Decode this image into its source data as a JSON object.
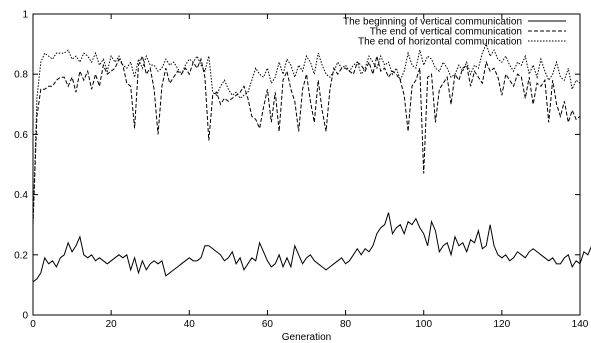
{
  "chart_data": {
    "type": "line",
    "title": "",
    "xlabel": "Generation",
    "ylabel": "",
    "xlim": [
      0,
      140
    ],
    "ylim": [
      0,
      1
    ],
    "xticks": [
      0,
      20,
      40,
      60,
      80,
      100,
      120,
      140
    ],
    "yticks": [
      0,
      0.2,
      0.4,
      0.6,
      0.8,
      1
    ],
    "ytick_labels": [
      "0",
      "0.2",
      "0.4",
      "0.6",
      "0.8",
      "1"
    ],
    "grid": false,
    "legend_position": "top-right",
    "series": [
      {
        "name": "The beginning of vertical communication",
        "dash": "solid",
        "values": [
          0.11,
          0.12,
          0.14,
          0.19,
          0.17,
          0.18,
          0.16,
          0.19,
          0.2,
          0.24,
          0.21,
          0.23,
          0.26,
          0.2,
          0.19,
          0.2,
          0.18,
          0.19,
          0.18,
          0.17,
          0.18,
          0.19,
          0.2,
          0.19,
          0.2,
          0.15,
          0.19,
          0.14,
          0.18,
          0.15,
          0.17,
          0.18,
          0.17,
          0.18,
          0.13,
          0.14,
          0.15,
          0.16,
          0.17,
          0.18,
          0.19,
          0.18,
          0.18,
          0.19,
          0.23,
          0.23,
          0.22,
          0.21,
          0.2,
          0.18,
          0.19,
          0.21,
          0.17,
          0.19,
          0.15,
          0.17,
          0.19,
          0.18,
          0.24,
          0.21,
          0.18,
          0.16,
          0.17,
          0.2,
          0.16,
          0.19,
          0.16,
          0.23,
          0.2,
          0.17,
          0.19,
          0.2,
          0.18,
          0.17,
          0.16,
          0.15,
          0.16,
          0.17,
          0.18,
          0.19,
          0.17,
          0.18,
          0.2,
          0.22,
          0.2,
          0.22,
          0.21,
          0.23,
          0.27,
          0.29,
          0.3,
          0.34,
          0.27,
          0.29,
          0.3,
          0.27,
          0.31,
          0.3,
          0.32,
          0.29,
          0.27,
          0.23,
          0.31,
          0.28,
          0.21,
          0.23,
          0.24,
          0.2,
          0.26,
          0.23,
          0.24,
          0.21,
          0.25,
          0.24,
          0.28,
          0.22,
          0.23,
          0.3,
          0.23,
          0.2,
          0.19,
          0.2,
          0.18,
          0.19,
          0.21,
          0.2,
          0.19,
          0.21,
          0.22,
          0.21,
          0.2,
          0.19,
          0.18,
          0.19,
          0.17,
          0.17,
          0.19,
          0.2,
          0.16,
          0.18,
          0.17,
          0.21,
          0.2,
          0.23,
          0.21,
          0.22
        ]
      },
      {
        "name": "The end of vertical communication",
        "dash": "dashed",
        "values": [
          0.3,
          0.66,
          0.75,
          0.75,
          0.76,
          0.76,
          0.78,
          0.79,
          0.79,
          0.76,
          0.79,
          0.74,
          0.81,
          0.78,
          0.81,
          0.75,
          0.8,
          0.76,
          0.83,
          0.8,
          0.81,
          0.82,
          0.85,
          0.83,
          0.77,
          0.76,
          0.62,
          0.83,
          0.86,
          0.8,
          0.82,
          0.75,
          0.6,
          0.76,
          0.82,
          0.77,
          0.79,
          0.81,
          0.8,
          0.82,
          0.8,
          0.84,
          0.82,
          0.85,
          0.79,
          0.58,
          0.73,
          0.74,
          0.7,
          0.72,
          0.71,
          0.72,
          0.73,
          0.74,
          0.76,
          0.72,
          0.66,
          0.65,
          0.62,
          0.69,
          0.75,
          0.64,
          0.74,
          0.61,
          0.78,
          0.81,
          0.75,
          0.71,
          0.61,
          0.75,
          0.8,
          0.71,
          0.64,
          0.78,
          0.68,
          0.61,
          0.75,
          0.82,
          0.8,
          0.82,
          0.82,
          0.81,
          0.8,
          0.84,
          0.83,
          0.81,
          0.84,
          0.8,
          0.86,
          0.81,
          0.82,
          0.79,
          0.81,
          0.8,
          0.78,
          0.73,
          0.61,
          0.76,
          0.78,
          0.82,
          0.47,
          0.79,
          0.8,
          0.64,
          0.75,
          0.77,
          0.79,
          0.7,
          0.8,
          0.78,
          0.82,
          0.83,
          0.76,
          0.81,
          0.79,
          0.77,
          0.84,
          0.81,
          0.82,
          0.79,
          0.73,
          0.8,
          0.78,
          0.76,
          0.8,
          0.79,
          0.72,
          0.79,
          0.7,
          0.77,
          0.76,
          0.78,
          0.64,
          0.78,
          0.7,
          0.66,
          0.71,
          0.64,
          0.68,
          0.65,
          0.66
        ]
      },
      {
        "name": "The end of horizontal communication",
        "dash": "dotted",
        "values": [
          0.3,
          0.72,
          0.84,
          0.87,
          0.86,
          0.85,
          0.87,
          0.87,
          0.87,
          0.88,
          0.85,
          0.86,
          0.84,
          0.87,
          0.86,
          0.84,
          0.87,
          0.83,
          0.85,
          0.81,
          0.86,
          0.84,
          0.86,
          0.83,
          0.82,
          0.84,
          0.79,
          0.85,
          0.82,
          0.86,
          0.83,
          0.83,
          0.81,
          0.82,
          0.85,
          0.83,
          0.84,
          0.82,
          0.8,
          0.83,
          0.85,
          0.84,
          0.86,
          0.83,
          0.81,
          0.86,
          0.74,
          0.73,
          0.76,
          0.78,
          0.75,
          0.73,
          0.74,
          0.72,
          0.73,
          0.74,
          0.78,
          0.82,
          0.8,
          0.79,
          0.82,
          0.77,
          0.79,
          0.84,
          0.8,
          0.85,
          0.83,
          0.79,
          0.83,
          0.81,
          0.86,
          0.84,
          0.8,
          0.87,
          0.83,
          0.8,
          0.79,
          0.81,
          0.84,
          0.82,
          0.83,
          0.81,
          0.83,
          0.84,
          0.8,
          0.82,
          0.86,
          0.84,
          0.82,
          0.86,
          0.83,
          0.84,
          0.8,
          0.82,
          0.78,
          0.81,
          0.87,
          0.83,
          0.82,
          0.88,
          0.83,
          0.86,
          0.85,
          0.82,
          0.81,
          0.84,
          0.82,
          0.79,
          0.8,
          0.83,
          0.81,
          0.84,
          0.8,
          0.83,
          0.82,
          0.87,
          0.9,
          0.86,
          0.88,
          0.85,
          0.84,
          0.86,
          0.83,
          0.81,
          0.84,
          0.83,
          0.86,
          0.8,
          0.83,
          0.79,
          0.85,
          0.81,
          0.78,
          0.8,
          0.84,
          0.79,
          0.78,
          0.82,
          0.75,
          0.78,
          0.77
        ]
      }
    ]
  }
}
